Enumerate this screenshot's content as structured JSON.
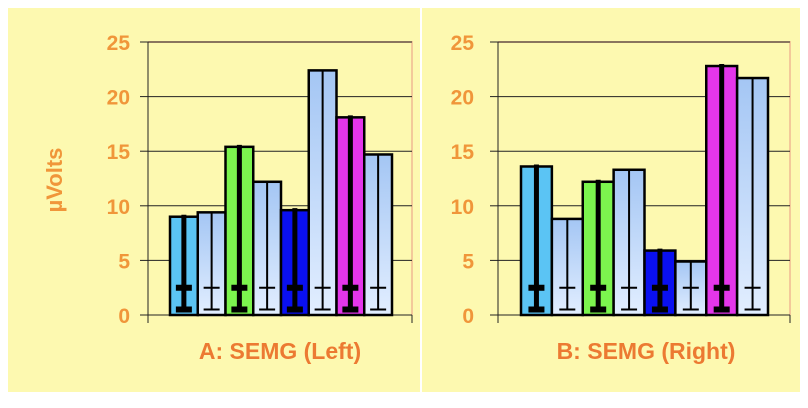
{
  "colors": {
    "background": "#fdf9b0",
    "text": "#f0963a",
    "title": "#ec7a32",
    "light_bar_top": "#a4c6f4",
    "light_bar_bottom": "#e2eeff",
    "highlight": [
      "#5bc4f4",
      "#7cf44e",
      "#0a10f0",
      "#e436ea"
    ]
  },
  "chart_data": [
    {
      "type": "bar",
      "title": "A: SEMG (Left)",
      "ylabel": "µVolts",
      "ylim": [
        0,
        25
      ],
      "yticks": [
        "0",
        "5",
        "10",
        "15",
        "20",
        "25"
      ],
      "grid": true,
      "values": [
        9.0,
        9.4,
        15.4,
        12.2,
        9.6,
        22.4,
        18.1,
        14.7
      ],
      "error_low": [
        2.5,
        2.5,
        2.5,
        2.5,
        2.5,
        2.5,
        2.5,
        2.5
      ],
      "bar_colors": [
        "#5bc4f4",
        "light",
        "#7cf44e",
        "light",
        "#0a10f0",
        "light",
        "#e436ea",
        "light"
      ]
    },
    {
      "type": "bar",
      "title": "B: SEMG (Right)",
      "ylabel": "",
      "ylim": [
        0,
        25
      ],
      "yticks": [
        "0",
        "5",
        "10",
        "15",
        "20",
        "25"
      ],
      "grid": true,
      "values": [
        13.6,
        8.8,
        12.2,
        13.3,
        5.9,
        4.9,
        22.8,
        21.7
      ],
      "error_low": [
        2.5,
        2.5,
        2.5,
        2.5,
        2.5,
        2.5,
        2.5,
        2.5
      ],
      "bar_colors": [
        "#5bc4f4",
        "light",
        "#7cf44e",
        "light",
        "#0a10f0",
        "light",
        "#e436ea",
        "light"
      ]
    }
  ]
}
